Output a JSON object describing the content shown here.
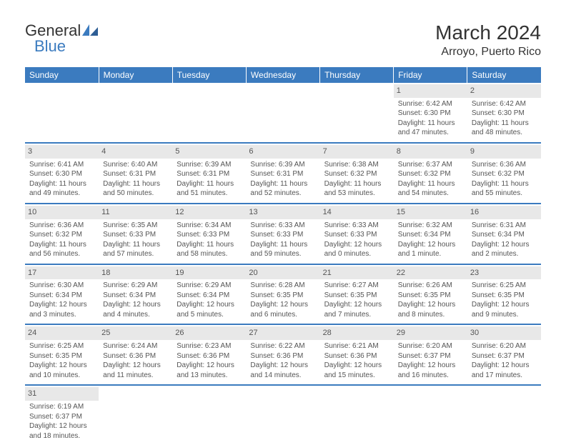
{
  "logo": {
    "text1": "General",
    "text2": "Blue"
  },
  "title": "March 2024",
  "location": "Arroyo, Puerto Rico",
  "colors": {
    "header_bg": "#3b7bbf",
    "header_text": "#ffffff",
    "daynum_bg": "#e8e8e8",
    "text": "#555555",
    "background": "#ffffff",
    "row_divider": "#3b7bbf"
  },
  "typography": {
    "title_fontsize": 28,
    "location_fontsize": 16,
    "weekday_fontsize": 12,
    "cell_fontsize": 10,
    "logo_fontsize": 22
  },
  "weekdays": [
    "Sunday",
    "Monday",
    "Tuesday",
    "Wednesday",
    "Thursday",
    "Friday",
    "Saturday"
  ],
  "weeks": [
    [
      null,
      null,
      null,
      null,
      null,
      {
        "n": "1",
        "sr": "Sunrise: 6:42 AM",
        "ss": "Sunset: 6:30 PM",
        "dl": "Daylight: 11 hours and 47 minutes."
      },
      {
        "n": "2",
        "sr": "Sunrise: 6:42 AM",
        "ss": "Sunset: 6:30 PM",
        "dl": "Daylight: 11 hours and 48 minutes."
      }
    ],
    [
      {
        "n": "3",
        "sr": "Sunrise: 6:41 AM",
        "ss": "Sunset: 6:30 PM",
        "dl": "Daylight: 11 hours and 49 minutes."
      },
      {
        "n": "4",
        "sr": "Sunrise: 6:40 AM",
        "ss": "Sunset: 6:31 PM",
        "dl": "Daylight: 11 hours and 50 minutes."
      },
      {
        "n": "5",
        "sr": "Sunrise: 6:39 AM",
        "ss": "Sunset: 6:31 PM",
        "dl": "Daylight: 11 hours and 51 minutes."
      },
      {
        "n": "6",
        "sr": "Sunrise: 6:39 AM",
        "ss": "Sunset: 6:31 PM",
        "dl": "Daylight: 11 hours and 52 minutes."
      },
      {
        "n": "7",
        "sr": "Sunrise: 6:38 AM",
        "ss": "Sunset: 6:32 PM",
        "dl": "Daylight: 11 hours and 53 minutes."
      },
      {
        "n": "8",
        "sr": "Sunrise: 6:37 AM",
        "ss": "Sunset: 6:32 PM",
        "dl": "Daylight: 11 hours and 54 minutes."
      },
      {
        "n": "9",
        "sr": "Sunrise: 6:36 AM",
        "ss": "Sunset: 6:32 PM",
        "dl": "Daylight: 11 hours and 55 minutes."
      }
    ],
    [
      {
        "n": "10",
        "sr": "Sunrise: 6:36 AM",
        "ss": "Sunset: 6:32 PM",
        "dl": "Daylight: 11 hours and 56 minutes."
      },
      {
        "n": "11",
        "sr": "Sunrise: 6:35 AM",
        "ss": "Sunset: 6:33 PM",
        "dl": "Daylight: 11 hours and 57 minutes."
      },
      {
        "n": "12",
        "sr": "Sunrise: 6:34 AM",
        "ss": "Sunset: 6:33 PM",
        "dl": "Daylight: 11 hours and 58 minutes."
      },
      {
        "n": "13",
        "sr": "Sunrise: 6:33 AM",
        "ss": "Sunset: 6:33 PM",
        "dl": "Daylight: 11 hours and 59 minutes."
      },
      {
        "n": "14",
        "sr": "Sunrise: 6:33 AM",
        "ss": "Sunset: 6:33 PM",
        "dl": "Daylight: 12 hours and 0 minutes."
      },
      {
        "n": "15",
        "sr": "Sunrise: 6:32 AM",
        "ss": "Sunset: 6:34 PM",
        "dl": "Daylight: 12 hours and 1 minute."
      },
      {
        "n": "16",
        "sr": "Sunrise: 6:31 AM",
        "ss": "Sunset: 6:34 PM",
        "dl": "Daylight: 12 hours and 2 minutes."
      }
    ],
    [
      {
        "n": "17",
        "sr": "Sunrise: 6:30 AM",
        "ss": "Sunset: 6:34 PM",
        "dl": "Daylight: 12 hours and 3 minutes."
      },
      {
        "n": "18",
        "sr": "Sunrise: 6:29 AM",
        "ss": "Sunset: 6:34 PM",
        "dl": "Daylight: 12 hours and 4 minutes."
      },
      {
        "n": "19",
        "sr": "Sunrise: 6:29 AM",
        "ss": "Sunset: 6:34 PM",
        "dl": "Daylight: 12 hours and 5 minutes."
      },
      {
        "n": "20",
        "sr": "Sunrise: 6:28 AM",
        "ss": "Sunset: 6:35 PM",
        "dl": "Daylight: 12 hours and 6 minutes."
      },
      {
        "n": "21",
        "sr": "Sunrise: 6:27 AM",
        "ss": "Sunset: 6:35 PM",
        "dl": "Daylight: 12 hours and 7 minutes."
      },
      {
        "n": "22",
        "sr": "Sunrise: 6:26 AM",
        "ss": "Sunset: 6:35 PM",
        "dl": "Daylight: 12 hours and 8 minutes."
      },
      {
        "n": "23",
        "sr": "Sunrise: 6:25 AM",
        "ss": "Sunset: 6:35 PM",
        "dl": "Daylight: 12 hours and 9 minutes."
      }
    ],
    [
      {
        "n": "24",
        "sr": "Sunrise: 6:25 AM",
        "ss": "Sunset: 6:35 PM",
        "dl": "Daylight: 12 hours and 10 minutes."
      },
      {
        "n": "25",
        "sr": "Sunrise: 6:24 AM",
        "ss": "Sunset: 6:36 PM",
        "dl": "Daylight: 12 hours and 11 minutes."
      },
      {
        "n": "26",
        "sr": "Sunrise: 6:23 AM",
        "ss": "Sunset: 6:36 PM",
        "dl": "Daylight: 12 hours and 13 minutes."
      },
      {
        "n": "27",
        "sr": "Sunrise: 6:22 AM",
        "ss": "Sunset: 6:36 PM",
        "dl": "Daylight: 12 hours and 14 minutes."
      },
      {
        "n": "28",
        "sr": "Sunrise: 6:21 AM",
        "ss": "Sunset: 6:36 PM",
        "dl": "Daylight: 12 hours and 15 minutes."
      },
      {
        "n": "29",
        "sr": "Sunrise: 6:20 AM",
        "ss": "Sunset: 6:37 PM",
        "dl": "Daylight: 12 hours and 16 minutes."
      },
      {
        "n": "30",
        "sr": "Sunrise: 6:20 AM",
        "ss": "Sunset: 6:37 PM",
        "dl": "Daylight: 12 hours and 17 minutes."
      }
    ],
    [
      {
        "n": "31",
        "sr": "Sunrise: 6:19 AM",
        "ss": "Sunset: 6:37 PM",
        "dl": "Daylight: 12 hours and 18 minutes."
      },
      null,
      null,
      null,
      null,
      null,
      null
    ]
  ]
}
